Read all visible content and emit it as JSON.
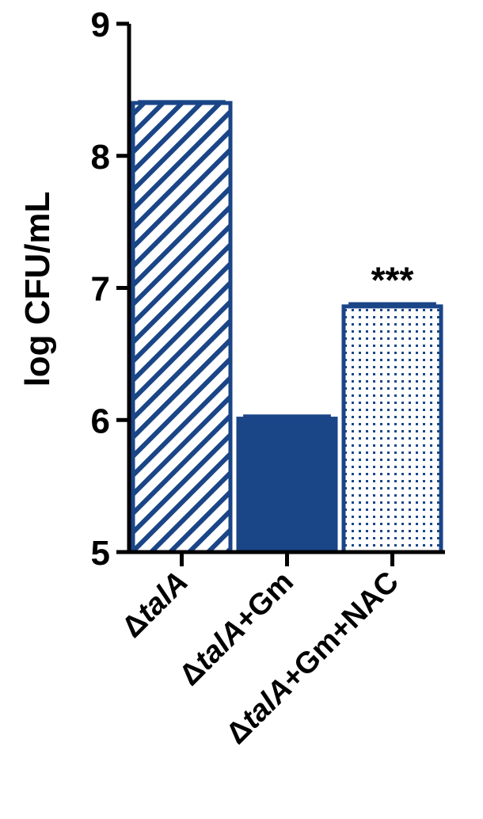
{
  "chart_data": {
    "type": "bar",
    "title": "",
    "xlabel": "",
    "ylabel": "log CFU/mL",
    "ylim": [
      5,
      9
    ],
    "yticks": [
      "5",
      "6",
      "7",
      "8",
      "9"
    ],
    "grid": false,
    "legend": "none",
    "categories": [
      {
        "pre": "Δ",
        "it": "talA",
        "post": ""
      },
      {
        "pre": "Δ",
        "it": "talA",
        "post": "+Gm"
      },
      {
        "pre": "Δ",
        "it": "talA",
        "post": "+Gm+NAC"
      }
    ],
    "values": [
      8.4,
      6.01,
      6.86
    ],
    "errors": [
      0.01,
      0.02,
      0.02
    ],
    "fills": [
      "hatched",
      "solid",
      "dotted"
    ],
    "annotations": [
      {
        "category_index": 2,
        "text": "***"
      }
    ],
    "colors": {
      "bar": "#1a4587",
      "axis": "#000000"
    }
  }
}
